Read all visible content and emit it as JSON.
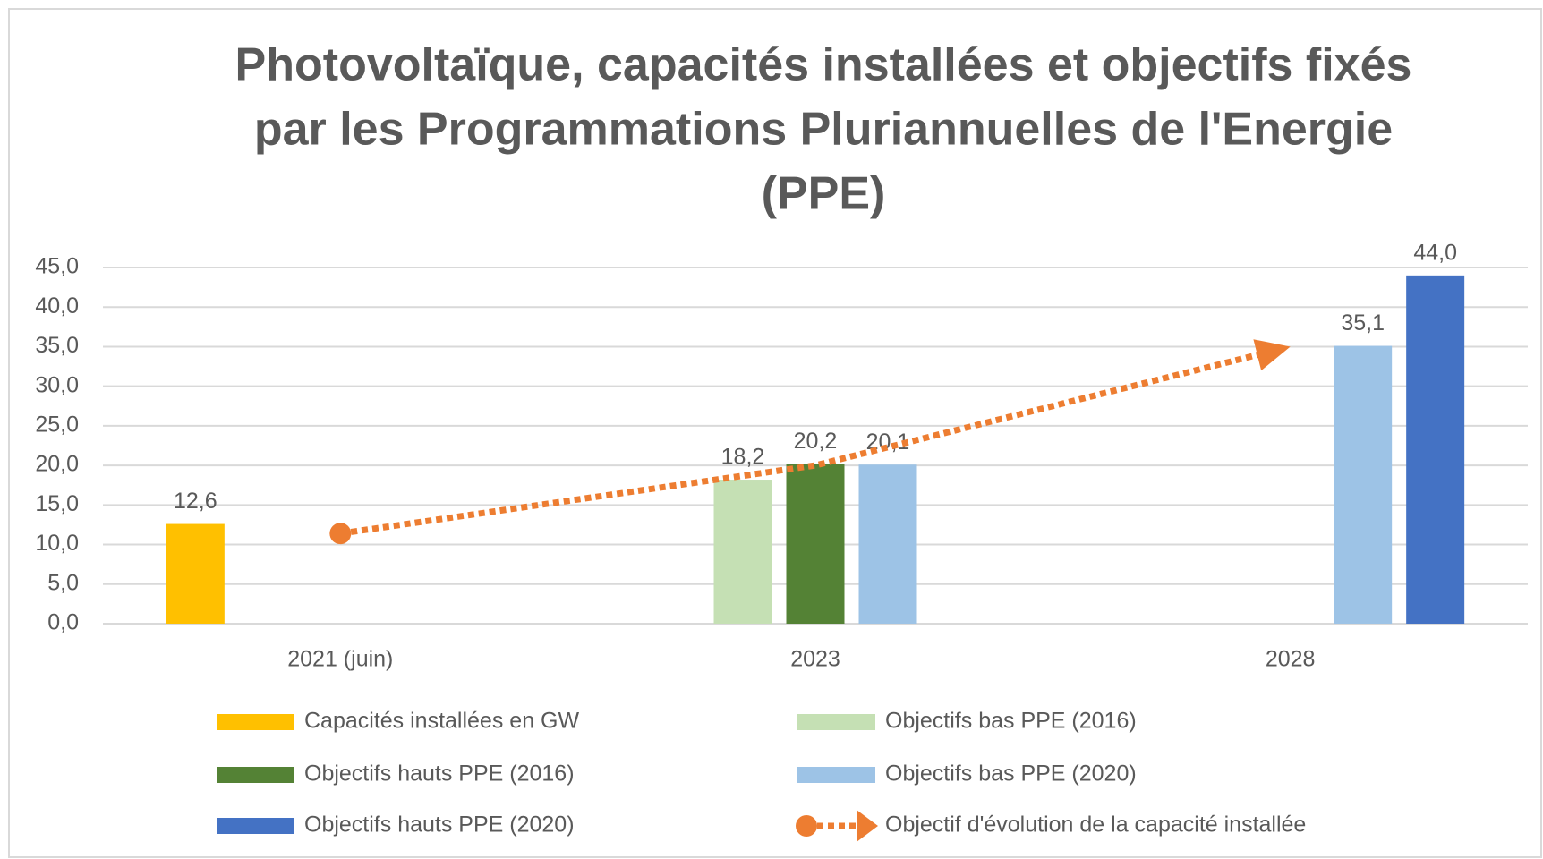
{
  "chart_data": {
    "type": "bar",
    "title": [
      "Photovoltaïque, capacités installées et objectifs fixés",
      "par les Programmations Pluriannuelles de l'Energie",
      "(PPE)"
    ],
    "categories": [
      "2021 (juin)",
      "2023",
      "2028"
    ],
    "series": [
      {
        "name": "Capacités installées en GW",
        "color": "#FFC000",
        "values": [
          12.6,
          null,
          null
        ],
        "value_labels": [
          "12,6",
          null,
          null
        ]
      },
      {
        "name": "Objectifs bas PPE (2016)",
        "color": "#C5E0B4",
        "values": [
          null,
          18.2,
          null
        ],
        "value_labels": [
          null,
          "18,2",
          null
        ]
      },
      {
        "name": "Objectifs hauts PPE (2016)",
        "color": "#548235",
        "values": [
          null,
          20.2,
          null
        ],
        "value_labels": [
          null,
          "20,2",
          null
        ]
      },
      {
        "name": "Objectifs bas PPE (2020)",
        "color": "#9DC3E6",
        "values": [
          null,
          20.1,
          35.1
        ],
        "value_labels": [
          null,
          "20,1",
          "35,1"
        ]
      },
      {
        "name": "Objectifs hauts PPE (2020)",
        "color": "#4472C4",
        "values": [
          null,
          null,
          44.0
        ],
        "value_labels": [
          null,
          null,
          "44,0"
        ]
      },
      {
        "name": "Objectif d'évolution de la capacité installée",
        "color": "#ED7D31",
        "type": "line",
        "values": [
          11.4,
          20.0,
          35.0
        ]
      }
    ],
    "ylim": [
      0,
      45
    ],
    "yticks": [
      {
        "value": 0,
        "label": "0,0"
      },
      {
        "value": 5,
        "label": "5,0"
      },
      {
        "value": 10,
        "label": "10,0"
      },
      {
        "value": 15,
        "label": "15,0"
      },
      {
        "value": 20,
        "label": "20,0"
      },
      {
        "value": 25,
        "label": "25,0"
      },
      {
        "value": 30,
        "label": "30,0"
      },
      {
        "value": 35,
        "label": "35,0"
      },
      {
        "value": 40,
        "label": "40,0"
      },
      {
        "value": 45,
        "label": "45,0"
      }
    ],
    "grid": true
  }
}
